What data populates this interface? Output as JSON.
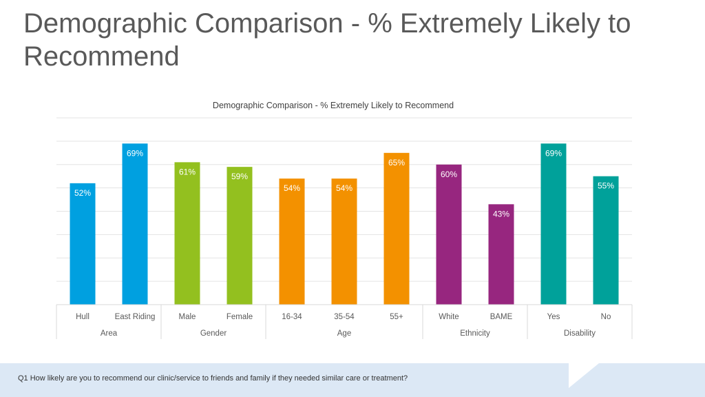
{
  "slide": {
    "title": "Demographic Comparison - % Extremely Likely to Recommend",
    "footnote": "Q1 How likely are you to recommend our clinic/service to friends and family if they needed similar care or treatment?"
  },
  "chart_data": {
    "type": "bar",
    "title": "Demographic Comparison - % Extremely Likely to Recommend",
    "categories": [
      "Hull",
      "East Riding",
      "Male",
      "Female",
      "16-34",
      "35-54",
      "55+",
      "White",
      "BAME",
      "Yes",
      "No"
    ],
    "values": [
      52,
      69,
      61,
      59,
      54,
      54,
      65,
      60,
      43,
      69,
      55
    ],
    "data_labels": [
      "52%",
      "69%",
      "61%",
      "59%",
      "54%",
      "54%",
      "65%",
      "60%",
      "43%",
      "69%",
      "55%"
    ],
    "groups": [
      {
        "name": "Area",
        "count": 2,
        "color": "#00a0e0"
      },
      {
        "name": "Gender",
        "count": 2,
        "color": "#93c01f"
      },
      {
        "name": "Age",
        "count": 3,
        "color": "#f39100"
      },
      {
        "name": "Ethnicity",
        "count": 2,
        "color": "#97267f"
      },
      {
        "name": "Disability",
        "count": 2,
        "color": "#00a19a"
      }
    ],
    "ylim": [
      0,
      80
    ],
    "grid": true,
    "xlabel": "",
    "ylabel": ""
  }
}
